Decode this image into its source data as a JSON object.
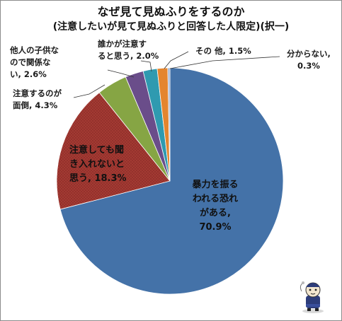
{
  "chart_data": {
    "type": "pie",
    "title": "なぜ見て見ぬふりをするのか",
    "subtitle": "(注意したいが見て見ぬふりと回答した人限定)(択一)",
    "slices": [
      {
        "label": "暴力を振るわれる恐れがある",
        "value": 70.9,
        "display": "70.9%",
        "color": "#4472a8"
      },
      {
        "label": "注意しても聞き入れないと思う",
        "value": 18.3,
        "display": "18.3%",
        "color": "#a33a33"
      },
      {
        "label": "注意するのが面倒",
        "value": 4.3,
        "display": "4.3%",
        "color": "#86a544"
      },
      {
        "label": "他人の子供なので関係ない",
        "value": 2.6,
        "display": "2.6%",
        "color": "#6a4d8a"
      },
      {
        "label": "誰かが注意すると思う",
        "value": 2.0,
        "display": "2.0%",
        "color": "#2f9ab0"
      },
      {
        "label": "その他",
        "value": 1.5,
        "display": "1.5%",
        "color": "#e4852e"
      },
      {
        "label": "分からない",
        "value": 0.3,
        "display": "0.3%",
        "color": "#9ab0d2"
      }
    ],
    "start_angle_deg": 0,
    "direction": "clockwise"
  },
  "labels": {
    "s0_l1": "暴力を振る",
    "s0_l2": "われる恐れ",
    "s0_l3": "がある,",
    "s0_l4": "70.9%",
    "s1_l1": "注意しても聞",
    "s1_l2": "き入れないと",
    "s1_l3": "思う, 18.3%",
    "s2_l1": "注意するのが",
    "s2_l2": "面倒, 4.3%",
    "s3_l1": "他人の子供な",
    "s3_l2": "ので関係な",
    "s3_l3": "い, 2.6%",
    "s4_l1": "誰かが注意す",
    "s4_l2": "ると思う, 2.0%",
    "s5_l1": "その 他, 1.5%",
    "s6_l1": "分からない,",
    "s6_l2": "0.3%"
  }
}
